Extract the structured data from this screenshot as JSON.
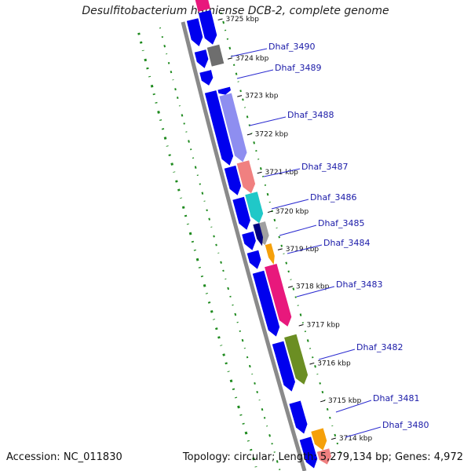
{
  "title": "Desulfitobacterium hafniense DCB-2, complete genome",
  "footer": {
    "accession": "Accession: NC_011830",
    "summary": "Topology: circular; Length: 5,279,134 bp; Genes: 4,972"
  },
  "colors": {
    "strand_forward": "#0000ee",
    "backbone": "#8a8a8a",
    "gc_dots": "#1e8a1e",
    "label_text": "#1a1aa8",
    "leader_line": "#2b2bd0"
  },
  "ticks": [
    {
      "label": "3725 kbp"
    },
    {
      "label": "3724 kbp"
    },
    {
      "label": "3723 kbp"
    },
    {
      "label": "3722 kbp"
    },
    {
      "label": "3721 kbp"
    },
    {
      "label": "3720 kbp"
    },
    {
      "label": "3719 kbp"
    },
    {
      "label": "3718 kbp"
    },
    {
      "label": "3717 kbp"
    },
    {
      "label": "3716 kbp"
    },
    {
      "label": "3715 kbp"
    },
    {
      "label": "3714 kbp"
    }
  ],
  "gene_labels": [
    {
      "name": "Dhaf_3490"
    },
    {
      "name": "Dhaf_3489"
    },
    {
      "name": "Dhaf_3488"
    },
    {
      "name": "Dhaf_3487"
    },
    {
      "name": "Dhaf_3486"
    },
    {
      "name": "Dhaf_3485"
    },
    {
      "name": "Dhaf_3484"
    },
    {
      "name": "Dhaf_3483"
    },
    {
      "name": "Dhaf_3482"
    },
    {
      "name": "Dhaf_3481"
    },
    {
      "name": "Dhaf_3480"
    }
  ],
  "outer_features": [
    {
      "color": "#e8187c"
    },
    {
      "color": "#0000ee"
    },
    {
      "color": "#6e6e6e"
    },
    {
      "color": "#0000ee"
    },
    {
      "color": "#8e8ef0"
    },
    {
      "color": "#0000ee"
    },
    {
      "color": "#f08080"
    },
    {
      "color": "#20c8c8"
    },
    {
      "color": "#a0a0a0"
    },
    {
      "color": "#000080"
    },
    {
      "color": "#f5a00a"
    },
    {
      "color": "#e8187c"
    },
    {
      "color": "#6b8e23"
    },
    {
      "color": "#f5a00a"
    },
    {
      "color": "#f08080"
    }
  ]
}
